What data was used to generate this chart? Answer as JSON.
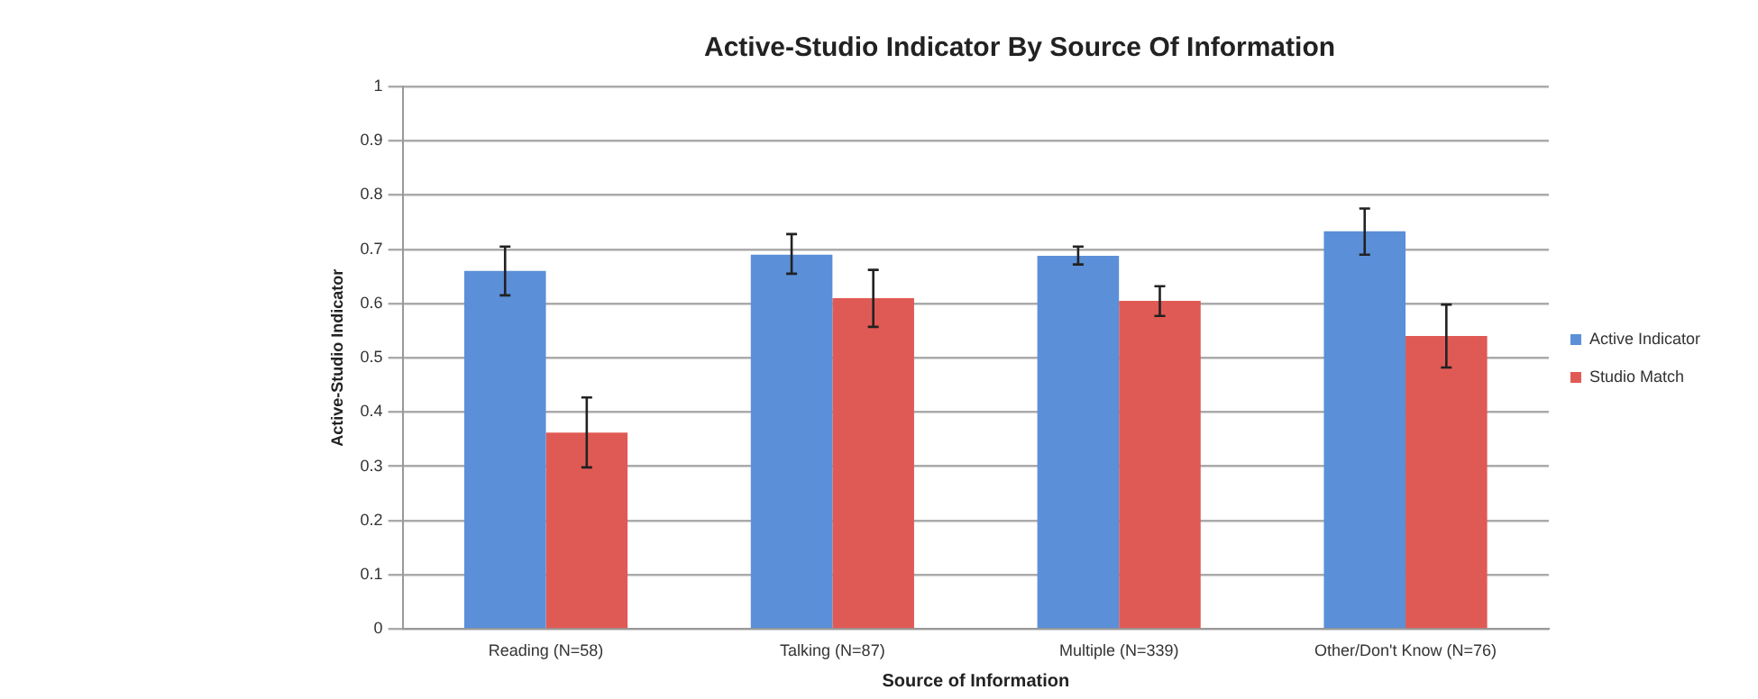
{
  "chart_data": {
    "type": "bar",
    "title": "Active-Studio Indicator By Source Of Information",
    "xlabel": "Source of Information",
    "ylabel": "Active-Studio Indicator",
    "categories": [
      "Reading (N=58)",
      "Talking (N=87)",
      "Multiple (N=339)",
      "Other/Don't Know (N=76)"
    ],
    "series": [
      {
        "name": "Active Indicator",
        "color": "#5b8fd8",
        "values": [
          0.66,
          0.69,
          0.688,
          0.733
        ],
        "errors": [
          [
            0.615,
            0.705
          ],
          [
            0.655,
            0.728
          ],
          [
            0.672,
            0.705
          ],
          [
            0.69,
            0.775
          ]
        ]
      },
      {
        "name": "Studio Match",
        "color": "#e05a55",
        "values": [
          0.362,
          0.61,
          0.605,
          0.54
        ],
        "errors": [
          [
            0.298,
            0.427
          ],
          [
            0.557,
            0.662
          ],
          [
            0.577,
            0.632
          ],
          [
            0.482,
            0.598
          ]
        ]
      }
    ],
    "ylim": [
      0,
      1
    ],
    "yticks": [
      0,
      0.1,
      0.2,
      0.3,
      0.4,
      0.5,
      0.6,
      0.7,
      0.8,
      0.9,
      1
    ],
    "grid": "y",
    "legend": "right"
  }
}
